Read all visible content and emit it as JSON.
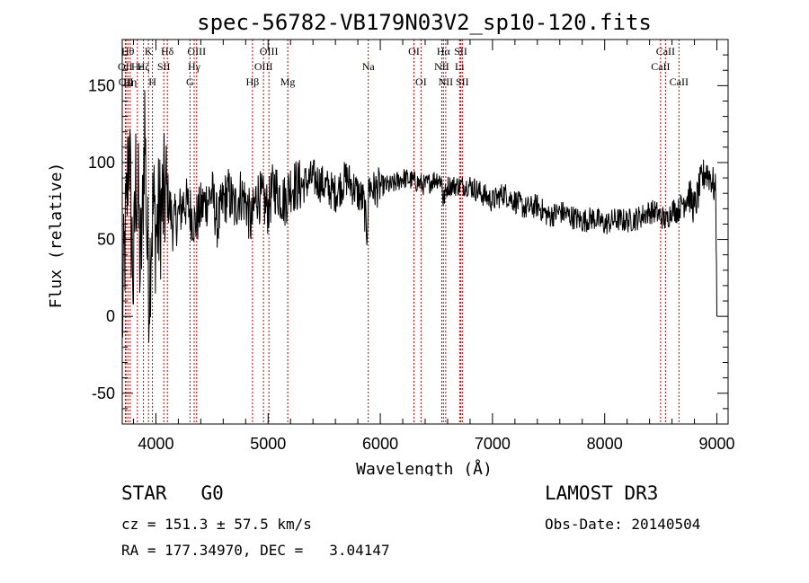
{
  "chart_data": {
    "type": "line",
    "title": "spec-56782-VB179N03V2_sp10-120.fits",
    "xlabel": "Wavelength (Å)",
    "ylabel": "Flux (relative)",
    "xlim": [
      3700,
      9100
    ],
    "ylim": [
      -70,
      180
    ],
    "xticks": [
      4000,
      5000,
      6000,
      7000,
      8000,
      9000
    ],
    "yticks": [
      -50,
      0,
      50,
      100,
      150
    ],
    "grid": false,
    "series": [
      {
        "x": [
          3700,
          3720,
          3740,
          3760,
          3780,
          3800,
          3820,
          3840,
          3860,
          3880,
          3900,
          3920,
          3940,
          3960,
          3980,
          4000,
          4050,
          4100,
          4150,
          4200,
          4250,
          4300,
          4350,
          4400,
          4450,
          4500,
          4550,
          4600,
          4650,
          4700,
          4750,
          4800,
          4850,
          4900,
          4950,
          5000,
          5050,
          5100,
          5150,
          5200,
          5300,
          5400,
          5500,
          5600,
          5700,
          5800,
          5850,
          5880,
          5900,
          5950,
          6000,
          6100,
          6200,
          6300,
          6400,
          6500,
          6550,
          6560,
          6600,
          6700,
          6800,
          6900,
          7000,
          7100,
          7200,
          7300,
          7400,
          7500,
          7600,
          7700,
          7800,
          7900,
          8000,
          8100,
          8200,
          8300,
          8400,
          8450,
          8500,
          8550,
          8600,
          8650,
          8700,
          8750,
          8800,
          8850,
          8900,
          8950,
          8990,
          9000
        ],
        "y": [
          -5,
          40,
          70,
          120,
          60,
          20,
          90,
          80,
          30,
          60,
          130,
          50,
          20,
          60,
          70,
          55,
          70,
          80,
          60,
          65,
          75,
          70,
          60,
          70,
          75,
          80,
          60,
          75,
          80,
          70,
          80,
          75,
          60,
          80,
          75,
          70,
          85,
          80,
          75,
          85,
          85,
          90,
          85,
          80,
          90,
          80,
          75,
          55,
          85,
          82,
          85,
          85,
          90,
          88,
          85,
          90,
          88,
          75,
          85,
          85,
          85,
          80,
          75,
          80,
          75,
          70,
          72,
          65,
          68,
          65,
          62,
          64,
          60,
          63,
          62,
          64,
          68,
          68,
          65,
          62,
          70,
          68,
          75,
          80,
          70,
          85,
          95,
          90,
          80,
          0
        ]
      }
    ],
    "lines": [
      {
        "wl": 3727,
        "label": "OII",
        "row": 2
      },
      {
        "wl": 3733,
        "label": "OII",
        "row": 3
      },
      {
        "wl": 3750,
        "label": "Hθ",
        "row": 1
      },
      {
        "wl": 3771,
        "label": "Hη",
        "row": 3
      },
      {
        "wl": 3835,
        "label": "Hε",
        "row": 2
      },
      {
        "wl": 3889,
        "label": "Hζ",
        "row": 2
      },
      {
        "wl": 3934,
        "label": "K",
        "row": 1
      },
      {
        "wl": 3969,
        "label": "H",
        "row": 3
      },
      {
        "wl": 4070,
        "label": "SII",
        "row": 2
      },
      {
        "wl": 4102,
        "label": "Hδ",
        "row": 1
      },
      {
        "wl": 4304,
        "label": "G",
        "row": 3
      },
      {
        "wl": 4341,
        "label": "Hγ",
        "row": 2
      },
      {
        "wl": 4363,
        "label": "OIII",
        "row": 1
      },
      {
        "wl": 4861,
        "label": "Hβ",
        "row": 3
      },
      {
        "wl": 4959,
        "label": "OIII",
        "row": 2
      },
      {
        "wl": 5007,
        "label": "OIII",
        "row": 1
      },
      {
        "wl": 5175,
        "label": "Mg",
        "row": 3
      },
      {
        "wl": 5893,
        "label": "Na",
        "row": 2
      },
      {
        "wl": 6300,
        "label": "OI",
        "row": 1
      },
      {
        "wl": 6363,
        "label": "OI",
        "row": 3
      },
      {
        "wl": 6548,
        "label": "NII",
        "row": 2
      },
      {
        "wl": 6563,
        "label": "Hα",
        "row": 1
      },
      {
        "wl": 6583,
        "label": "NII",
        "row": 3
      },
      {
        "wl": 6707,
        "label": "Li",
        "row": 2
      },
      {
        "wl": 6717,
        "label": "SII",
        "row": 1
      },
      {
        "wl": 6731,
        "label": "SII",
        "row": 3
      },
      {
        "wl": 8498,
        "label": "CaII",
        "row": 2
      },
      {
        "wl": 8542,
        "label": "CaII",
        "row": 1
      },
      {
        "wl": 8662,
        "label": "CaII",
        "row": 3
      }
    ],
    "line_color": "#cc0000"
  },
  "info": {
    "object_class": "STAR   G0",
    "survey": "LAMOST DR3",
    "cz": "cz = 151.3 ± 57.5 km/s",
    "obs_date": "Obs-Date: 20140504",
    "radec": "RA = 177.34970, DEC =   3.04147"
  }
}
